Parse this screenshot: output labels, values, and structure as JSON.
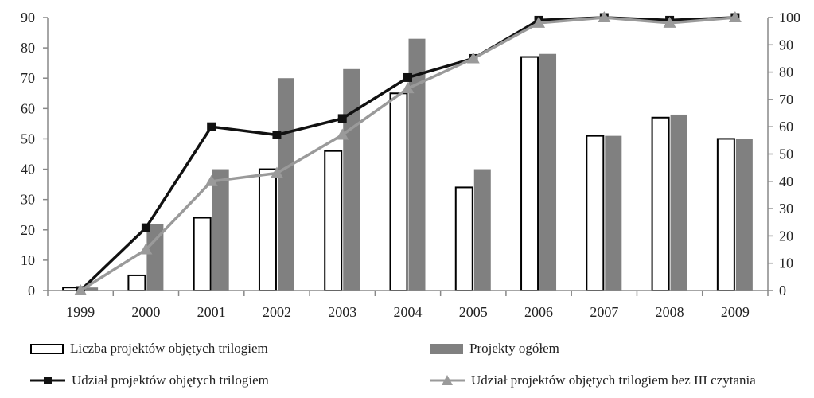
{
  "chart_data": {
    "type": "bar",
    "categories": [
      "1999",
      "2000",
      "2001",
      "2002",
      "2003",
      "2004",
      "2005",
      "2006",
      "2007",
      "2008",
      "2009"
    ],
    "series": [
      {
        "name": "Liczba projektów objętych trilogiem",
        "type": "bar",
        "axis": "left",
        "color": "#ffffff",
        "stroke": "#000000",
        "values": [
          1,
          5,
          24,
          40,
          46,
          65,
          34,
          77,
          51,
          57,
          50
        ]
      },
      {
        "name": "Projekty ogółem",
        "type": "bar",
        "axis": "left",
        "color": "#808080",
        "values": [
          1,
          22,
          40,
          70,
          73,
          83,
          40,
          78,
          51,
          58,
          50
        ]
      },
      {
        "name": "Udział projektów objętych trilogiem",
        "type": "line",
        "axis": "right",
        "color": "#111111",
        "marker": "square",
        "values": [
          0,
          23,
          60,
          57,
          63,
          78,
          85,
          99,
          100,
          99,
          100
        ]
      },
      {
        "name": "Udział projektów objętych trilogiem bez III czytania",
        "type": "line",
        "axis": "right",
        "color": "#9a9a9a",
        "marker": "triangle",
        "values": [
          0,
          15,
          40,
          43,
          57,
          74,
          85,
          98,
          100,
          98,
          100
        ]
      }
    ],
    "y_left": {
      "min": 0,
      "max": 90,
      "step": 10
    },
    "y_right": {
      "min": 0,
      "max": 100,
      "step": 10
    },
    "title": "",
    "xlabel": "",
    "ylabel": "",
    "grid": false,
    "legend_position": "bottom"
  }
}
